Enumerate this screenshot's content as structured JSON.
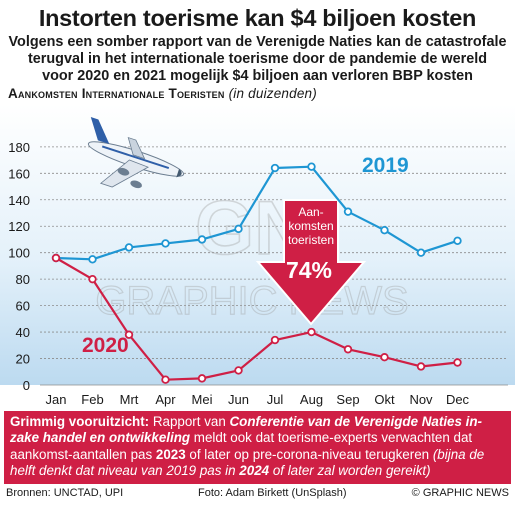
{
  "header": {
    "title": "Instorten toerisme kan $4 biljoen kosten",
    "subtitle_lines": [
      "Volgens een somber rapport van de Verenigde Naties kan de catastrofale",
      "terugval in het internationale toerisme door de pandemie de wereld",
      "voor 2020 en 2021 mogelijk $4 biljoen aan verloren BBP kosten"
    ]
  },
  "chart_data": {
    "type": "line",
    "title": "Aankomsten Internationale Toeristen",
    "units": "(in duizenden)",
    "categories": [
      "Jan",
      "Feb",
      "Mrt",
      "Apr",
      "Mei",
      "Jun",
      "Jul",
      "Aug",
      "Sep",
      "Okt",
      "Nov",
      "Dec"
    ],
    "series": [
      {
        "name": "2019",
        "values": [
          96,
          95,
          104,
          107,
          110,
          118,
          164,
          165,
          131,
          117,
          100,
          109
        ],
        "color": "#1e96d3"
      },
      {
        "name": "2020",
        "values": [
          96,
          80,
          38,
          4,
          5,
          11,
          34,
          40,
          27,
          21,
          14,
          17
        ],
        "color": "#cf1f45"
      }
    ],
    "ylim": [
      0,
      180
    ],
    "yticks": [
      0,
      20,
      40,
      60,
      80,
      100,
      120,
      140,
      160,
      180
    ],
    "grid": true,
    "annotation": {
      "lines": [
        "Aan-",
        "komsten",
        "toeristen"
      ],
      "value": "74%",
      "color": "#cf1f45"
    }
  },
  "watermark": "GRAPHIC NEWS",
  "outlook": {
    "label": "Grimmig vooruitzicht:",
    "text_1": " Rapport van ",
    "italic_1": "Conferentie van de Verenigde Naties in-zake handel en ontwikkeling",
    "text_2": " meldt ook dat toerisme-experts verwachten dat aankomst-aantallen pas ",
    "bold_1": "2023",
    "text_3": " of later op pre-corona-niveau terugkeren ",
    "italic_2a": "(bijna de helft denkt dat niveau van 2019 pas in ",
    "bold_2": "2024",
    "italic_2b": " of later zal worden gereikt)"
  },
  "footer": {
    "sources": "Bronnen: UNCTAD, UPI",
    "photo": "Foto: Adam Birkett (UnSplash)",
    "copyright": "© GRAPHIC NEWS"
  }
}
